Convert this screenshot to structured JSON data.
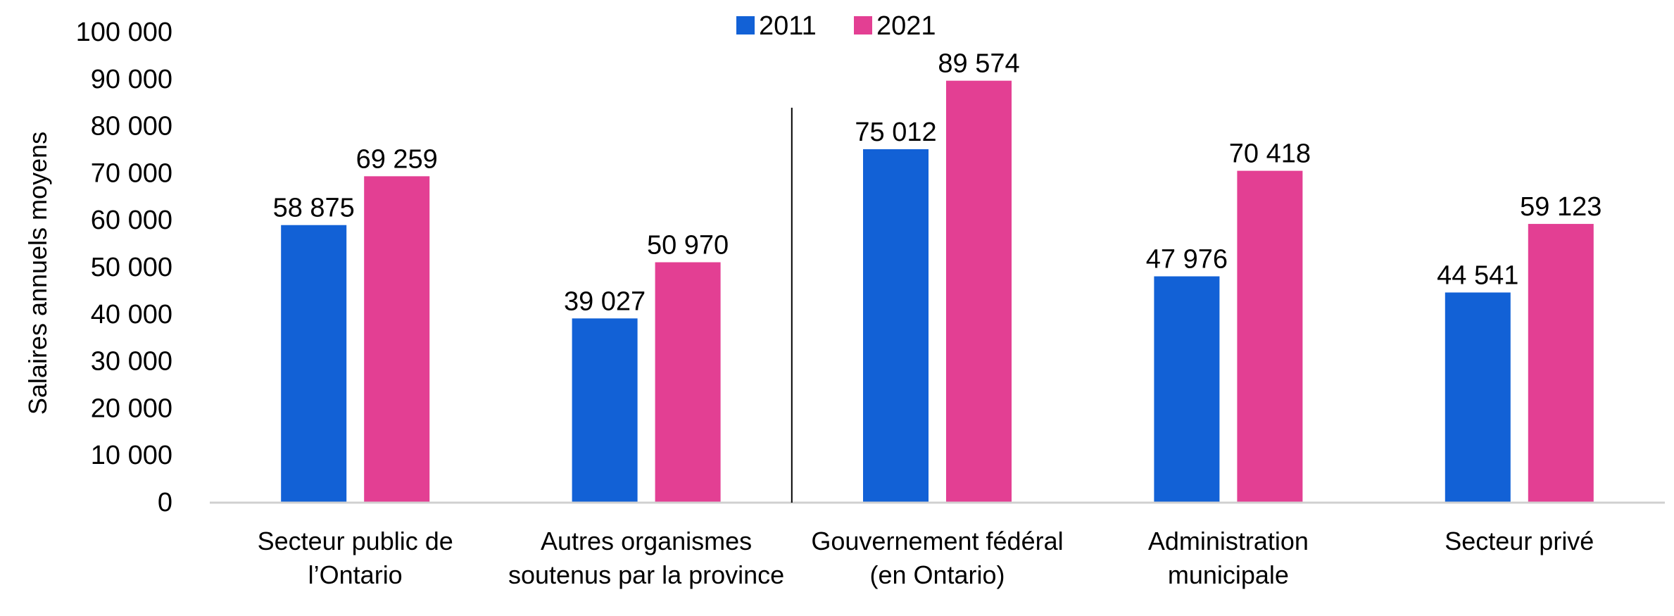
{
  "chart_data": {
    "type": "bar",
    "categories": [
      [
        "Secteur public de",
        "l’Ontario"
      ],
      [
        "Autres organismes",
        "soutenus par la province"
      ],
      [
        "Gouvernement fédéral",
        "(en Ontario)"
      ],
      [
        "Administration",
        "municipale"
      ],
      [
        "Secteur privé"
      ]
    ],
    "series": [
      {
        "name": "2011",
        "color": "#1261d6",
        "values": [
          58875,
          39027,
          75012,
          47976,
          44541
        ],
        "labels": [
          "58 875",
          "39 027",
          "75 012",
          "47 976",
          "44 541"
        ]
      },
      {
        "name": "2021",
        "color": "#e33f93",
        "values": [
          69259,
          50970,
          89574,
          70418,
          59123
        ],
        "labels": [
          "69 259",
          "50 970",
          "89 574",
          "70 418",
          "59 123"
        ]
      }
    ],
    "title": "",
    "xlabel": "",
    "ylabel": "Salaires annuels moyens",
    "ylim": [
      0,
      100000
    ],
    "yticks": [
      0,
      10000,
      20000,
      30000,
      40000,
      50000,
      60000,
      70000,
      80000,
      90000,
      100000
    ],
    "ytick_labels": [
      "0",
      "10 000",
      "20 000",
      "30 000",
      "40 000",
      "50 000",
      "60 000",
      "70 000",
      "80 000",
      "90 000",
      "100 000"
    ],
    "grid": false,
    "legend_position": "top-center",
    "divider_after_category": 2
  }
}
